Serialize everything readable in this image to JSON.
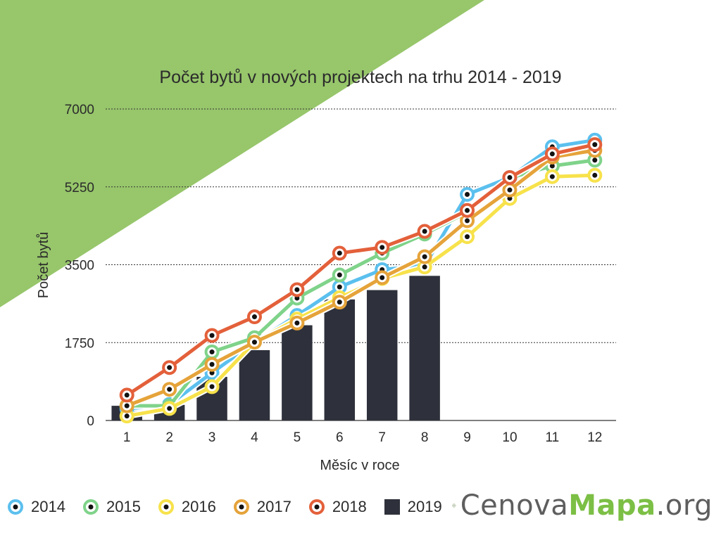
{
  "chart_data": {
    "type": "bar+line",
    "title": "Počet bytů v nových projektech na trhu 2014 - 2019",
    "xlabel": "Měsíc v roce",
    "ylabel": "Počet bytů",
    "categories": [
      "1",
      "2",
      "3",
      "4",
      "5",
      "6",
      "7",
      "8",
      "9",
      "10",
      "11",
      "12"
    ],
    "ylim": [
      0,
      7000
    ],
    "yticks": [
      "0",
      "1750",
      "3500",
      "5250",
      "7000"
    ],
    "grid": "horizontal-dotted",
    "legend_position": "bottom-left",
    "series": [
      {
        "name": "2014",
        "kind": "line",
        "color": "#5bc0ee",
        "values": [
          260,
          360,
          1070,
          1760,
          2360,
          3000,
          3390,
          3480,
          5080,
          5460,
          6150,
          6300
        ]
      },
      {
        "name": "2015",
        "kind": "line",
        "color": "#7fd38a",
        "values": [
          330,
          330,
          1540,
          1860,
          2750,
          3270,
          3760,
          4190,
          4680,
          5450,
          5720,
          5850
        ]
      },
      {
        "name": "2016",
        "kind": "line",
        "color": "#f7e24b",
        "values": [
          100,
          270,
          760,
          1760,
          2280,
          2760,
          3190,
          3450,
          4130,
          4990,
          5480,
          5510
        ]
      },
      {
        "name": "2017",
        "kind": "line",
        "color": "#e5a33a",
        "values": [
          330,
          700,
          1260,
          1760,
          2190,
          2660,
          3210,
          3680,
          4490,
          5180,
          5920,
          6070
        ]
      },
      {
        "name": "2018",
        "kind": "line",
        "color": "#e3603a",
        "values": [
          570,
          1190,
          1910,
          2330,
          2940,
          3760,
          3890,
          4250,
          4720,
          5460,
          5990,
          6200
        ]
      },
      {
        "name": "2019",
        "kind": "bar",
        "color": "#2e313b",
        "values": [
          330,
          350,
          980,
          1580,
          2140,
          2720,
          2930,
          3250,
          null,
          null,
          null,
          null
        ]
      }
    ]
  },
  "brand": {
    "part1": "Cenova",
    "part2": "Mapa",
    "part3": ".org",
    "accent_color": "#7cbf45",
    "icon": "globe-icon"
  },
  "decor": {
    "triangle_color": "#97c66b"
  }
}
